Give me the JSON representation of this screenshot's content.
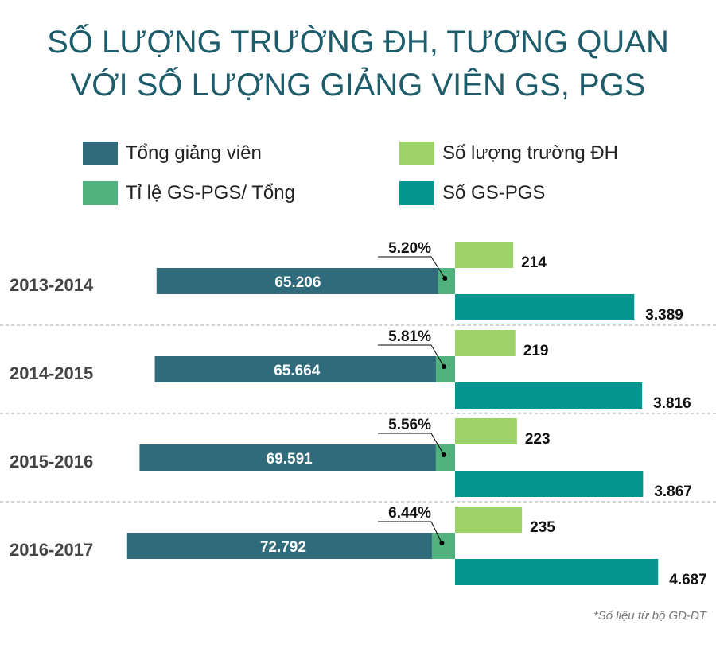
{
  "title_lines": [
    "SỐ LƯỢNG TRƯỜNG ĐH, TƯƠNG QUAN",
    "VỚI SỐ LƯỢNG GIẢNG VIÊN GS, PGS"
  ],
  "note": "*Số liệu từ bộ GD-ĐT",
  "chart_data": {
    "type": "bar",
    "title": "SỐ LƯỢNG TRƯỜNG ĐH, TƯƠNG QUAN VỚI SỐ LƯỢNG GIẢNG VIÊN GS, PGS",
    "legend_placement": "top",
    "grid": false,
    "categories": [
      "2013-2014",
      "2014-2015",
      "2015-2016",
      "2016-2017"
    ],
    "series": [
      {
        "name": "Tổng giảng viên",
        "color": "#2f6b7a",
        "values": [
          65206,
          65664,
          69591,
          72792
        ],
        "labels": [
          "65.206",
          "65.664",
          "69.591",
          "72.792"
        ]
      },
      {
        "name": "Tỉ lệ GS-PGS/ Tổng",
        "color": "#52b27d",
        "values": [
          5.2,
          5.81,
          5.56,
          6.44
        ],
        "labels": [
          "5.20%",
          "5.81%",
          "5.56%",
          "6.44%"
        ]
      },
      {
        "name": "Số lượng trường ĐH",
        "color": "#9ed36a",
        "values": [
          214,
          219,
          223,
          235
        ],
        "labels": [
          "214",
          "219",
          "223",
          "235"
        ]
      },
      {
        "name": "Số GS-PGS",
        "color": "#05958f",
        "values": [
          3389,
          3816,
          3867,
          4687
        ],
        "labels": [
          "3.389",
          "3.816",
          "3.867",
          "4.687"
        ]
      }
    ]
  }
}
